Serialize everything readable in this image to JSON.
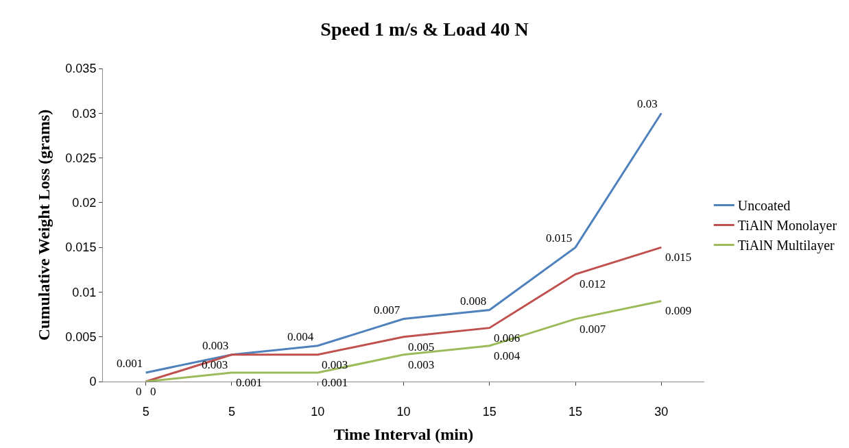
{
  "chart_data": {
    "type": "line",
    "title": "Speed 1 m/s & Load 40 N",
    "xlabel": "Time Interval (min)",
    "ylabel": "Cumulative Weight Loss (grams)",
    "categories": [
      "5",
      "5",
      "10",
      "10",
      "15",
      "15",
      "30"
    ],
    "series": [
      {
        "name": "Uncoated",
        "color": "#4f81bd",
        "values": [
          0.001,
          0.003,
          0.004,
          0.007,
          0.008,
          0.015,
          0.03
        ]
      },
      {
        "name": "TiAlN Monolayer",
        "color": "#c0504d",
        "values": [
          0,
          0.003,
          0.003,
          0.005,
          0.006,
          0.012,
          0.015
        ]
      },
      {
        "name": "TiAlN Multilayer",
        "color": "#9bbb59",
        "values": [
          0,
          0.001,
          0.001,
          0.003,
          0.004,
          0.007,
          0.009
        ]
      }
    ],
    "ylim": [
      0,
      0.035
    ],
    "yticks": [
      0,
      0.005,
      0.01,
      0.015,
      0.02,
      0.025,
      0.03,
      0.035
    ],
    "data_labels": true,
    "legend": "right",
    "marker": "none",
    "line_style": "solid"
  }
}
